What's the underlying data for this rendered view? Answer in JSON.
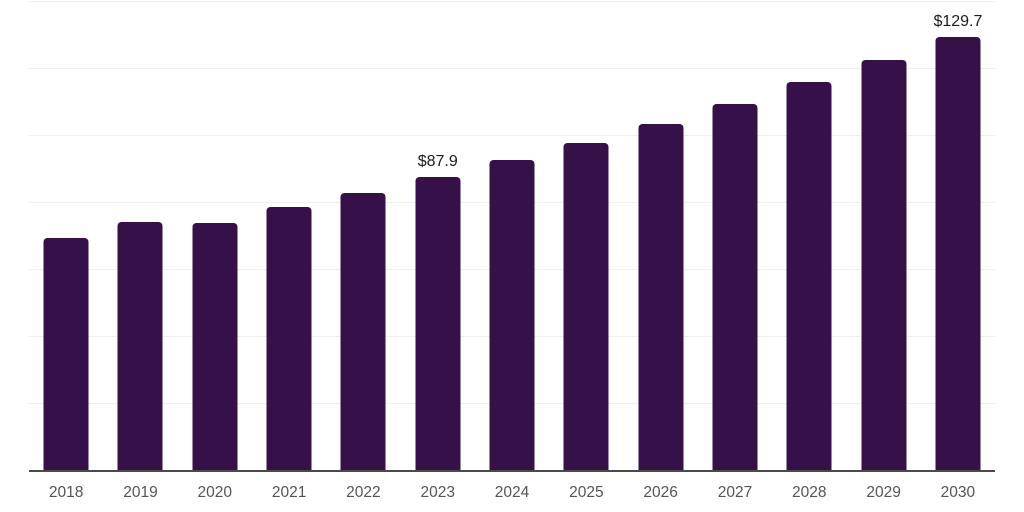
{
  "chart": {
    "background_color": "#ffffff",
    "bar_color": "#351049",
    "grid_color": "#f0f0f0",
    "axis_color": "#4a4a4a",
    "tick_label_color": "#555555",
    "data_label_color": "#1b1b1b"
  },
  "chart_data": {
    "type": "bar",
    "title": "",
    "xlabel": "",
    "ylabel": "",
    "categories": [
      "2018",
      "2019",
      "2020",
      "2021",
      "2022",
      "2023",
      "2024",
      "2025",
      "2026",
      "2027",
      "2028",
      "2029",
      "2030"
    ],
    "values": [
      69.5,
      74.2,
      73.9,
      78.7,
      83.1,
      87.9,
      92.9,
      98.0,
      103.6,
      109.6,
      116.1,
      122.6,
      129.7
    ],
    "data_labels": {
      "2023": "$87.9",
      "2030": "$129.7"
    },
    "ylim": [
      0,
      140
    ],
    "grid_step": 20,
    "grid": true,
    "legend_position": "none",
    "y_tick_labels_visible": false
  }
}
